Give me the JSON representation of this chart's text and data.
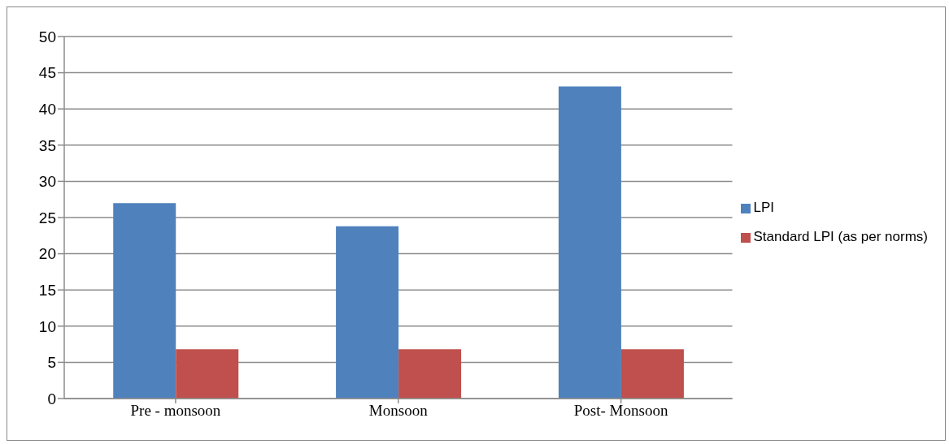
{
  "chart_data": {
    "type": "bar",
    "categories": [
      "Pre - monsoon",
      "Monsoon",
      "Post- Monsoon"
    ],
    "series": [
      {
        "name": "LPI",
        "color": "#4f81bd",
        "values": [
          27.0,
          23.8,
          43.1
        ]
      },
      {
        "name": "Standard LPI (as per norms)",
        "color": "#c0504d",
        "values": [
          6.8,
          6.8,
          6.8
        ]
      }
    ],
    "ylim": [
      0,
      50
    ],
    "yticks": [
      0,
      5,
      10,
      15,
      20,
      25,
      30,
      35,
      40,
      45,
      50
    ],
    "grid": "y",
    "legend": "right"
  }
}
